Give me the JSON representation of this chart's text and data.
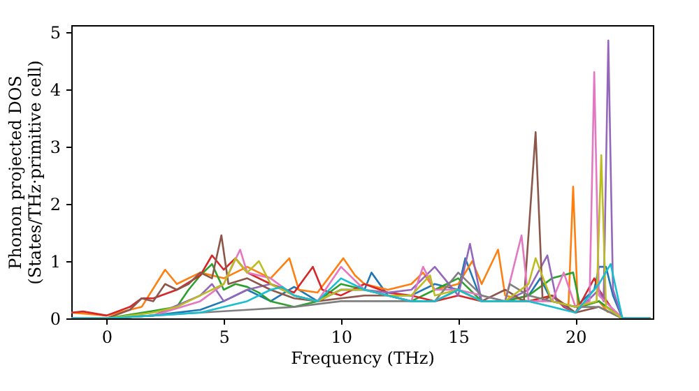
{
  "chart_data": {
    "type": "line",
    "xlabel": "Frequency (THz)",
    "ylabel": "Phonon projected DOS\n(States/THz·primitive cell)",
    "xlim": [
      -1.5,
      23.3
    ],
    "ylim": [
      0,
      5.12
    ],
    "xticks": [
      0,
      5,
      10,
      15,
      20
    ],
    "yticks": [
      0,
      1,
      2,
      3,
      4,
      5
    ],
    "grid": false,
    "legend": false,
    "series": [
      {
        "color": "#1f77b4",
        "x": [
          -1.5,
          0,
          2,
          4,
          5,
          6,
          7,
          8,
          9,
          10,
          11,
          11.3,
          12,
          13,
          14,
          15,
          15.3,
          16,
          17,
          18,
          18.5,
          19,
          20,
          20.8,
          21,
          21.3,
          21.6,
          22,
          23.2
        ],
        "values": [
          0,
          0,
          0.05,
          0.15,
          0.3,
          0.5,
          0.3,
          0.55,
          0.3,
          0.5,
          0.5,
          0.8,
          0.4,
          0.4,
          0.6,
          0.5,
          1.05,
          0.3,
          0.3,
          0.4,
          0.7,
          0.3,
          0.2,
          0.5,
          0.9,
          0.9,
          0.4,
          0,
          0
        ]
      },
      {
        "color": "#ff7f0e",
        "x": [
          -1.5,
          0,
          1.5,
          2.5,
          3,
          4,
          5,
          6,
          7,
          7.8,
          8.2,
          9,
          10.1,
          10.6,
          11,
          12,
          13,
          13.5,
          14,
          15,
          15.6,
          16,
          16.7,
          17,
          18,
          19,
          19.7,
          19.9,
          20.1,
          21,
          21.4
        ],
        "values": [
          0.1,
          0.05,
          0.2,
          0.85,
          0.6,
          0.8,
          0.7,
          0.9,
          0.7,
          1.05,
          0.5,
          0.45,
          1.05,
          0.75,
          0.6,
          0.5,
          0.6,
          0.8,
          0.5,
          0.6,
          1.0,
          0.6,
          1.2,
          0.4,
          0.3,
          0.4,
          0.2,
          2.3,
          0.2,
          0.3,
          0.1
        ]
      },
      {
        "color": "#2ca02c",
        "x": [
          -1.5,
          0,
          2,
          3,
          3.5,
          4,
          4.5,
          5,
          5.5,
          6,
          6.5,
          7,
          8,
          9,
          10,
          11,
          12,
          13,
          14,
          15,
          16,
          17,
          18,
          19,
          19.9,
          20.2,
          21,
          22,
          23.2
        ],
        "values": [
          0,
          0,
          0.13,
          0.2,
          0.5,
          0.75,
          0.95,
          0.5,
          0.6,
          0.55,
          0.45,
          0.3,
          0.2,
          0.3,
          0.6,
          0.5,
          0.4,
          0.3,
          0.5,
          0.7,
          0.3,
          0.3,
          0.4,
          0.7,
          0.8,
          0.2,
          0.3,
          0,
          0
        ]
      },
      {
        "color": "#d62728",
        "x": [
          -1.5,
          -1,
          0,
          1,
          1.5,
          2,
          3,
          4,
          4.5,
          5,
          5.5,
          6,
          7,
          8,
          8.8,
          9.2,
          10,
          11,
          12,
          13,
          14,
          15,
          16,
          17,
          18,
          19,
          19.5,
          20,
          20.8,
          21,
          21.5,
          22,
          23.2
        ],
        "values": [
          0.1,
          0.12,
          0.05,
          0.2,
          0.35,
          0.35,
          0.5,
          0.75,
          1.1,
          0.85,
          1.05,
          0.8,
          0.6,
          0.45,
          0.9,
          0.5,
          0.4,
          0.6,
          0.45,
          0.4,
          0.3,
          0.4,
          0.3,
          0.3,
          0.3,
          0.4,
          0.2,
          0.1,
          0.7,
          0.5,
          0.2,
          0,
          0
        ]
      },
      {
        "color": "#9467bd",
        "x": [
          -1.5,
          0,
          2,
          4,
          4.5,
          5,
          6,
          7,
          8,
          9,
          10,
          11,
          12,
          13,
          14,
          15,
          15.5,
          16,
          17,
          18,
          18.8,
          19.2,
          20,
          21,
          21.2,
          21.4,
          21.6,
          22,
          23.2
        ],
        "values": [
          0,
          0,
          0.05,
          0.4,
          0.6,
          0.3,
          0.5,
          0.6,
          0.4,
          0.3,
          0.5,
          0.5,
          0.45,
          0.5,
          0.9,
          0.4,
          1.3,
          0.3,
          0.3,
          0.5,
          1.1,
          0.3,
          0.1,
          0.5,
          0.3,
          4.85,
          0.5,
          0,
          0
        ]
      },
      {
        "color": "#8c564b",
        "x": [
          -1.5,
          0,
          1,
          1.5,
          2,
          2.5,
          3,
          3.5,
          4,
          4.5,
          4.9,
          5.2,
          6,
          7,
          8,
          9,
          10,
          11,
          12,
          13,
          14,
          15,
          16,
          17,
          17.8,
          18.3,
          18.6,
          19,
          20,
          21,
          22,
          23.2
        ],
        "values": [
          0,
          0,
          0.15,
          0.35,
          0.3,
          0.6,
          0.5,
          0.6,
          0.8,
          0.7,
          1.45,
          0.6,
          0.7,
          0.5,
          0.35,
          0.3,
          0.35,
          0.4,
          0.4,
          0.3,
          0.3,
          0.5,
          0.3,
          0.5,
          0.3,
          3.25,
          0.3,
          0.4,
          0.1,
          0.2,
          0,
          0
        ]
      },
      {
        "color": "#e377c2",
        "x": [
          -1.5,
          0,
          2,
          4,
          5,
          5.7,
          6,
          7,
          8,
          9,
          10,
          11,
          12,
          13,
          13.5,
          14,
          15,
          16,
          17,
          17.7,
          18,
          19,
          19.5,
          20,
          20.6,
          20.8,
          21,
          21.5,
          22,
          23.2
        ],
        "values": [
          0,
          0,
          0.05,
          0.3,
          0.6,
          1.2,
          0.8,
          0.7,
          0.4,
          0.3,
          0.9,
          0.5,
          0.4,
          0.3,
          0.9,
          0.5,
          0.5,
          0.4,
          0.3,
          1.45,
          0.3,
          0.3,
          0.8,
          0.2,
          0.3,
          4.3,
          0.4,
          0.2,
          0,
          0
        ]
      },
      {
        "color": "#7f7f7f",
        "x": [
          -1.5,
          0,
          2,
          4,
          6,
          8,
          10,
          12,
          14,
          15,
          16,
          17,
          17.2,
          18,
          19,
          20,
          21,
          22,
          23.2
        ],
        "values": [
          0,
          0,
          0.05,
          0.1,
          0.15,
          0.2,
          0.3,
          0.3,
          0.3,
          0.8,
          0.4,
          0.3,
          0.6,
          0.4,
          0.3,
          0.2,
          0.2,
          0,
          0
        ]
      },
      {
        "color": "#bcbd22",
        "x": [
          -1.5,
          0,
          2,
          3,
          4,
          5,
          5.5,
          6,
          6.5,
          7,
          8,
          9,
          10,
          11,
          12,
          13,
          13.8,
          14,
          15,
          16,
          17,
          18,
          18.3,
          19,
          20,
          20.9,
          21.1,
          21.3,
          22,
          23.2
        ],
        "values": [
          0,
          0,
          0.1,
          0.2,
          0.4,
          0.6,
          1.05,
          0.8,
          1.0,
          0.6,
          0.4,
          0.3,
          0.5,
          0.5,
          0.4,
          0.4,
          0.75,
          0.4,
          0.5,
          0.3,
          0.3,
          0.6,
          1.05,
          0.3,
          0.2,
          0.3,
          2.85,
          0.2,
          0,
          0
        ]
      },
      {
        "color": "#17becf",
        "x": [
          -1.5,
          0,
          2,
          4,
          6,
          7,
          7.5,
          8,
          9,
          10,
          11,
          12,
          13,
          14,
          15,
          16,
          17,
          18,
          19,
          20,
          21,
          21.5,
          22,
          23.2
        ],
        "values": [
          0,
          0,
          0.05,
          0.1,
          0.3,
          0.5,
          0.55,
          0.4,
          0.3,
          0.7,
          0.5,
          0.4,
          0.3,
          0.3,
          0.5,
          0.3,
          0.3,
          0.3,
          0.2,
          0.1,
          0.6,
          0.95,
          0,
          0
        ]
      }
    ]
  }
}
